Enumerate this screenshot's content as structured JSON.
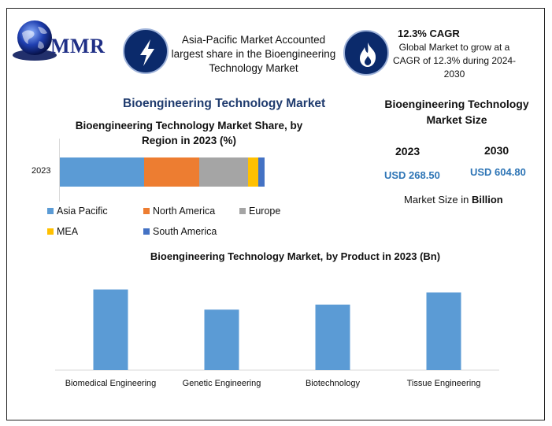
{
  "logo": {
    "text": "MMR"
  },
  "info1": {
    "text": "Asia-Pacific Market Accounted largest share in the Bioengineering Technology Market",
    "icon": "lightning-icon"
  },
  "info2": {
    "title": "12.3% CAGR",
    "text": "Global Market to grow at a CAGR of 12.3% during 2024-2030",
    "icon": "flame-icon"
  },
  "main_title": "Bioengineering Technology Market",
  "market_size": {
    "title": "Bioengineering Technology Market Size",
    "years": [
      {
        "year": "2023",
        "value": "USD 268.50"
      },
      {
        "year": "2030",
        "value": "USD 604.80"
      }
    ],
    "note_prefix": "Market Size in",
    "note_unit": "Billion"
  },
  "colors": {
    "asia_pacific": "#5b9bd5",
    "north_america": "#ed7d31",
    "europe": "#a5a5a5",
    "mea": "#ffc000",
    "south_america": "#4472c4",
    "bar": "#5b9bd5",
    "accent": "#0b2a6b"
  },
  "chart_data": [
    {
      "type": "bar",
      "stacked": true,
      "orientation": "horizontal",
      "title": "Bioengineering Technology Market Share, by Region in 2023 (%)",
      "categories": [
        "2023"
      ],
      "series": [
        {
          "name": "Asia Pacific",
          "values": [
            41
          ]
        },
        {
          "name": "North America",
          "values": [
            27
          ]
        },
        {
          "name": "Europe",
          "values": [
            24
          ]
        },
        {
          "name": "MEA",
          "values": [
            5
          ]
        },
        {
          "name": "South America",
          "values": [
            3
          ]
        }
      ],
      "xlim": [
        0,
        100
      ],
      "grid": false,
      "legend": "bottom"
    },
    {
      "type": "bar",
      "title": "Bioengineering Technology Market, by Product in 2023 (Bn)",
      "categories": [
        "Biomedical Engineering",
        "Genetic Engineering",
        "Biotechnology",
        "Tissue Engineering"
      ],
      "values": [
        80,
        60,
        65,
        77
      ],
      "ylim": [
        0,
        100
      ],
      "grid": false
    }
  ]
}
